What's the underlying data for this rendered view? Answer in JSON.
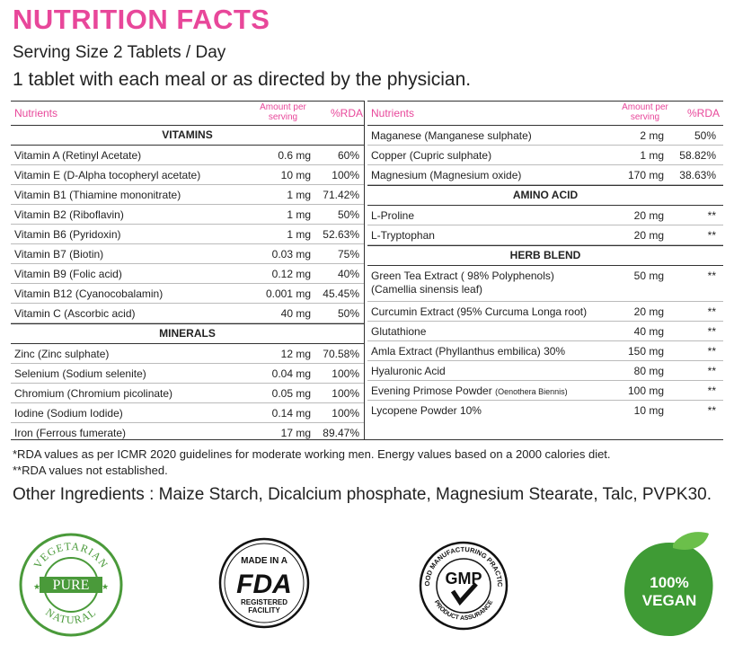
{
  "title": "NUTRITION FACTS",
  "serving": "Serving Size 2 Tablets / Day",
  "directions": "1 tablet with each meal or as directed by the physician.",
  "headers": {
    "nutrients": "Nutrients",
    "amount": "Amount per serving",
    "amount_l1": "Amount per",
    "amount_l2": "serving",
    "rda": "%RDA"
  },
  "left": {
    "vitamins_title": "VITAMINS",
    "vitamins": [
      {
        "name": "Vitamin A (Retinyl Acetate)",
        "amount": "0.6 mg",
        "rda": "60%"
      },
      {
        "name": "Vitamin E (D-Alpha tocopheryl acetate)",
        "amount": "10 mg",
        "rda": "100%"
      },
      {
        "name": "Vitamin B1 (Thiamine mononitrate)",
        "amount": "1 mg",
        "rda": "71.42%"
      },
      {
        "name": "Vitamin B2 (Riboflavin)",
        "amount": "1 mg",
        "rda": "50%"
      },
      {
        "name": "Vitamin B6 (Pyridoxin)",
        "amount": "1 mg",
        "rda": "52.63%"
      },
      {
        "name": "Vitamin B7 (Biotin)",
        "amount": "0.03 mg",
        "rda": "75%"
      },
      {
        "name": "Vitamin B9 (Folic acid)",
        "amount": "0.12 mg",
        "rda": "40%"
      },
      {
        "name": "Vitamin B12 (Cyanocobalamin)",
        "amount": "0.001 mg",
        "rda": "45.45%"
      },
      {
        "name": "Vitamin C (Ascorbic acid)",
        "amount": "40 mg",
        "rda": "50%"
      }
    ],
    "minerals_title": "MINERALS",
    "minerals": [
      {
        "name": "Zinc (Zinc sulphate)",
        "amount": "12 mg",
        "rda": "70.58%"
      },
      {
        "name": "Selenium (Sodium selenite)",
        "amount": "0.04 mg",
        "rda": "100%"
      },
      {
        "name": "Chromium (Chromium picolinate)",
        "amount": "0.05 mg",
        "rda": "100%"
      },
      {
        "name": "Iodine (Sodium Iodide)",
        "amount": "0.14 mg",
        "rda": "100%"
      },
      {
        "name": "Iron (Ferrous fumerate)",
        "amount": "17 mg",
        "rda": "89.47%"
      }
    ]
  },
  "right": {
    "minerals_cont": [
      {
        "name": "Maganese (Manganese sulphate)",
        "amount": "2 mg",
        "rda": "50%"
      },
      {
        "name": "Copper (Cupric sulphate)",
        "amount": "1 mg",
        "rda": "58.82%"
      },
      {
        "name": "Magnesium (Magnesium oxide)",
        "amount": "170 mg",
        "rda": "38.63%"
      }
    ],
    "amino_title": "AMINO ACID",
    "amino": [
      {
        "name": "L-Proline",
        "amount": "20 mg",
        "rda": "**"
      },
      {
        "name": "L-Tryptophan",
        "amount": "20 mg",
        "rda": "**"
      }
    ],
    "herb_title": "HERB BLEND",
    "herb_first": {
      "name_l1": "Green Tea Extract ( 98% Polyphenols)",
      "name_l2": "(Camellia sinensis leaf)",
      "amount": "50 mg",
      "rda": "**"
    },
    "herb": [
      {
        "name": "Curcumin Extract (95% Curcuma Longa root)",
        "amount": "20 mg",
        "rda": "**"
      },
      {
        "name": "Glutathione",
        "amount": "40 mg",
        "rda": "**"
      },
      {
        "name": "Amla Extract (Phyllanthus embilica) 30%",
        "amount": "150 mg",
        "rda": "**"
      },
      {
        "name": "Hyaluronic Acid",
        "amount": "80 mg",
        "rda": "**"
      }
    ],
    "primrose": {
      "name": "Evening Primose Powder",
      "name_small": "(Oenothera Biennis)",
      "amount": "100 mg",
      "rda": "**"
    },
    "lycopene": {
      "name": "Lycopene Powder 10%",
      "amount": "10 mg",
      "rda": "**"
    }
  },
  "notes": {
    "rda_note": "*RDA values as per ICMR 2020 guidelines for moderate working men. Energy values based on a 2000 calories diet.",
    "not_established": "**RDA values not established."
  },
  "other_ingredients": "Other Ingredients : Maize Starch, Dicalcium phosphate, Magnesium Stearate, Talc, PVPK30.",
  "badges": {
    "veg_top": "VEGETARIAN",
    "veg_mid": "PURE",
    "veg_bottom": "NATURAL",
    "fda_top": "MADE IN A",
    "fda_mark": "FDA",
    "fda_bottom_l1": "REGISTERED",
    "fda_bottom_l2": "FACILITY",
    "gmp_top": "GOOD MANUFACTURING PRACTICE",
    "gmp_mark": "GMP",
    "gmp_bottom": "PRODUCT ASSURANCE",
    "vegan_l1": "100%",
    "vegan_l2": "VEGAN"
  },
  "colors": {
    "accent": "#e8479a",
    "veg_green": "#4a9a3a",
    "vegan_green": "#3f9b35"
  }
}
